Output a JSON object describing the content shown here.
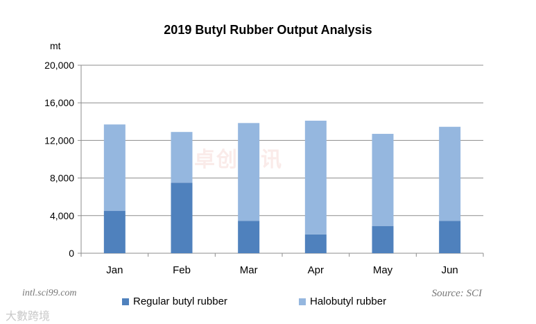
{
  "chart_data": {
    "type": "bar",
    "stacked": true,
    "title": "2019 Butyl Rubber Output Analysis",
    "ylabel": "mt",
    "categories": [
      "Jan",
      "Feb",
      "Mar",
      "Apr",
      "May",
      "Jun"
    ],
    "series": [
      {
        "name": "Regular butyl rubber",
        "color": "#4f81bd",
        "values": [
          4500,
          7500,
          3450,
          2000,
          2900,
          3450
        ]
      },
      {
        "name": "Halobutyl rubber",
        "color": "#95b7df",
        "values": [
          9200,
          5400,
          10400,
          12100,
          9800,
          10000
        ]
      }
    ],
    "ylim": [
      0,
      20000
    ],
    "yticks": [
      0,
      4000,
      8000,
      12000,
      16000,
      20000
    ],
    "ytick_labels": [
      "0",
      "4,000",
      "8,000",
      "12,000",
      "16,000",
      "20,000"
    ],
    "grid": true,
    "legend_position": "bottom"
  },
  "footer": {
    "source_left": "intl.sci99.com",
    "source_right": "Source: SCI"
  },
  "watermark": {
    "center": "卓创资讯",
    "bottom": "大數跨境"
  }
}
